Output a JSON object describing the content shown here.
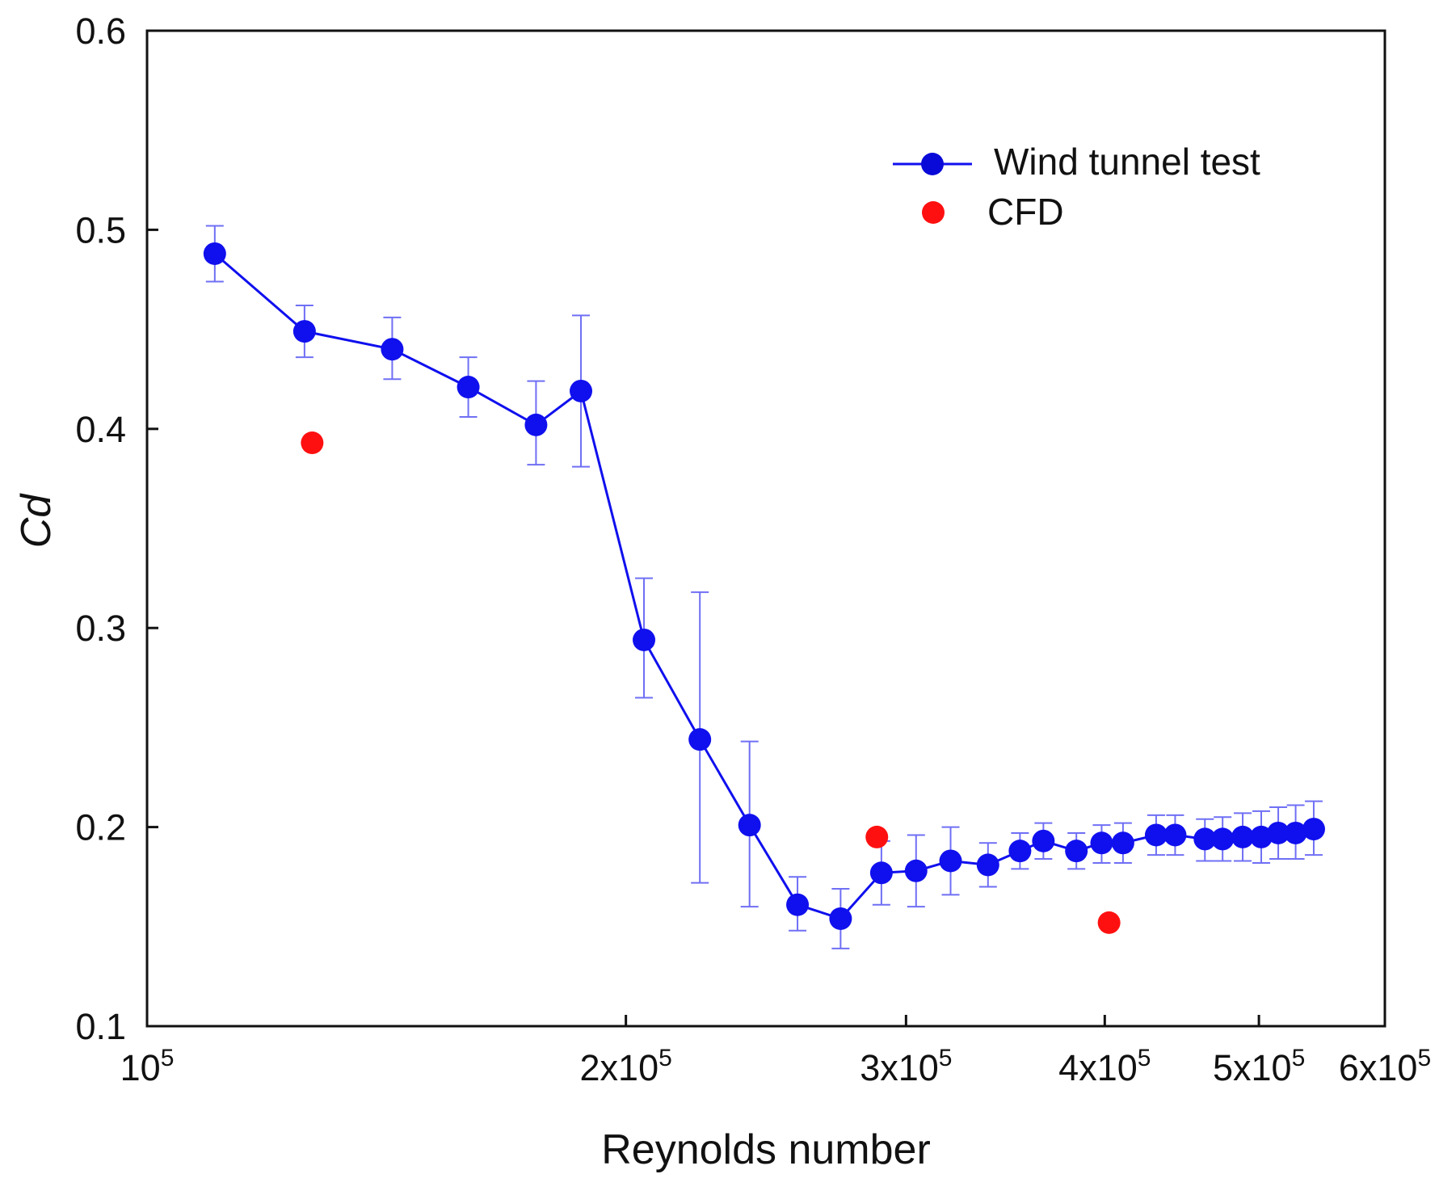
{
  "chart_data": {
    "type": "scatter",
    "xscale": "log",
    "xlabel": "Reynolds number",
    "ylabel": "Cd",
    "xlim": [
      100000,
      600000
    ],
    "ylim": [
      0.1,
      0.6
    ],
    "grid": false,
    "legend": "top-right",
    "x_ticks": [
      {
        "value": 100000,
        "base": "10",
        "exp": "5"
      },
      {
        "value": 200000,
        "base": "2x10",
        "exp": "5"
      },
      {
        "value": 300000,
        "base": "3x10",
        "exp": "5"
      },
      {
        "value": 400000,
        "base": "4x10",
        "exp": "5"
      },
      {
        "value": 500000,
        "base": "5x10",
        "exp": "5"
      },
      {
        "value": 600000,
        "base": "6x10",
        "exp": "5"
      }
    ],
    "y_ticks": [
      {
        "value": 0.1,
        "label": "0.1"
      },
      {
        "value": 0.2,
        "label": "0.2"
      },
      {
        "value": 0.3,
        "label": "0.3"
      },
      {
        "value": 0.4,
        "label": "0.4"
      },
      {
        "value": 0.5,
        "label": "0.5"
      },
      {
        "value": 0.6,
        "label": "0.6"
      }
    ],
    "series": [
      {
        "name": "Wind tunnel test",
        "color": "#1010ee",
        "errorbar_color": "#6f6ff5",
        "style": "line+marker",
        "points": [
          {
            "x": 110300,
            "y": 0.488,
            "lo": 0.474,
            "hi": 0.502
          },
          {
            "x": 125600,
            "y": 0.449,
            "lo": 0.436,
            "hi": 0.462
          },
          {
            "x": 142600,
            "y": 0.44,
            "lo": 0.425,
            "hi": 0.456
          },
          {
            "x": 159200,
            "y": 0.421,
            "lo": 0.406,
            "hi": 0.436
          },
          {
            "x": 175600,
            "y": 0.402,
            "lo": 0.382,
            "hi": 0.424
          },
          {
            "x": 187400,
            "y": 0.419,
            "lo": 0.381,
            "hi": 0.457
          },
          {
            "x": 205300,
            "y": 0.294,
            "lo": 0.265,
            "hi": 0.325
          },
          {
            "x": 222600,
            "y": 0.244,
            "lo": 0.172,
            "hi": 0.318
          },
          {
            "x": 239200,
            "y": 0.201,
            "lo": 0.16,
            "hi": 0.243
          },
          {
            "x": 256400,
            "y": 0.161,
            "lo": 0.148,
            "hi": 0.175
          },
          {
            "x": 272900,
            "y": 0.154,
            "lo": 0.139,
            "hi": 0.169
          },
          {
            "x": 289500,
            "y": 0.177,
            "lo": 0.161,
            "hi": 0.193
          },
          {
            "x": 304400,
            "y": 0.178,
            "lo": 0.16,
            "hi": 0.196
          },
          {
            "x": 320000,
            "y": 0.183,
            "lo": 0.166,
            "hi": 0.2
          },
          {
            "x": 337800,
            "y": 0.181,
            "lo": 0.17,
            "hi": 0.192
          },
          {
            "x": 353800,
            "y": 0.188,
            "lo": 0.179,
            "hi": 0.197
          },
          {
            "x": 366000,
            "y": 0.193,
            "lo": 0.184,
            "hi": 0.202
          },
          {
            "x": 383900,
            "y": 0.188,
            "lo": 0.179,
            "hi": 0.197
          },
          {
            "x": 398200,
            "y": 0.192,
            "lo": 0.182,
            "hi": 0.201
          },
          {
            "x": 410700,
            "y": 0.192,
            "lo": 0.182,
            "hi": 0.202
          },
          {
            "x": 430900,
            "y": 0.196,
            "lo": 0.186,
            "hi": 0.206
          },
          {
            "x": 442900,
            "y": 0.196,
            "lo": 0.186,
            "hi": 0.206
          },
          {
            "x": 462400,
            "y": 0.194,
            "lo": 0.183,
            "hi": 0.204
          },
          {
            "x": 474400,
            "y": 0.194,
            "lo": 0.183,
            "hi": 0.205
          },
          {
            "x": 488400,
            "y": 0.195,
            "lo": 0.183,
            "hi": 0.207
          },
          {
            "x": 501700,
            "y": 0.195,
            "lo": 0.182,
            "hi": 0.208
          },
          {
            "x": 514200,
            "y": 0.197,
            "lo": 0.184,
            "hi": 0.21
          },
          {
            "x": 527300,
            "y": 0.197,
            "lo": 0.184,
            "hi": 0.211
          },
          {
            "x": 541300,
            "y": 0.199,
            "lo": 0.186,
            "hi": 0.213
          }
        ]
      },
      {
        "name": "CFD",
        "color": "#ff1010",
        "style": "marker",
        "points": [
          {
            "x": 127000,
            "y": 0.393
          },
          {
            "x": 287600,
            "y": 0.195
          },
          {
            "x": 402500,
            "y": 0.152
          }
        ]
      }
    ]
  }
}
